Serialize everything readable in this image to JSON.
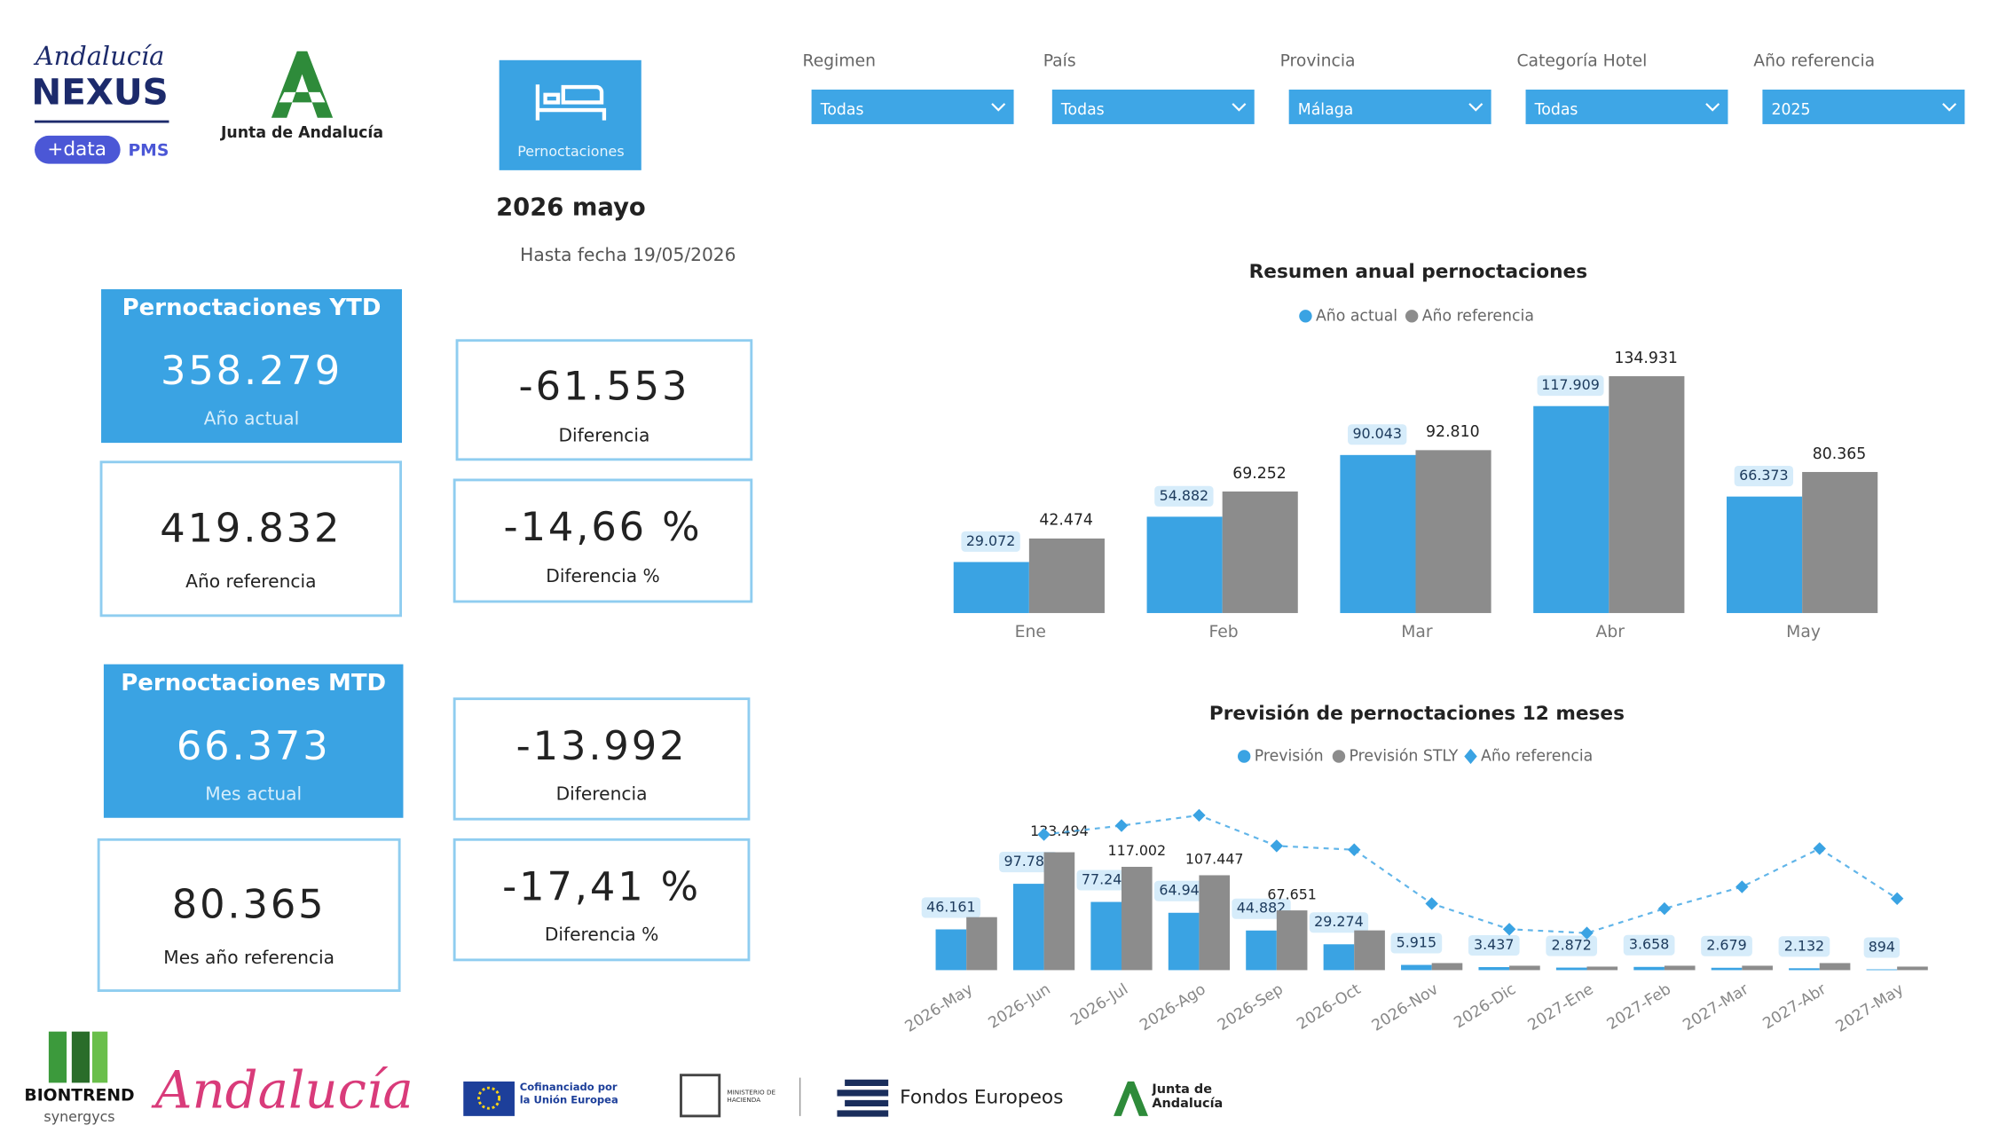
{
  "header": {
    "logo_title": "Andalucía",
    "logo_brand": "NEXUS",
    "logo_badge": "+data",
    "logo_tag": "PMS",
    "junta": "Junta de Andalucía",
    "button": "Pernoctaciones",
    "period": "2026 mayo",
    "date_note": "Hasta fecha 19/05/2026"
  },
  "filters": [
    {
      "label": "Regimen",
      "value": "Todas"
    },
    {
      "label": "País",
      "value": "Todas"
    },
    {
      "label": "Provincia",
      "value": "Málaga"
    },
    {
      "label": "Categoría Hotel",
      "value": "Todas"
    },
    {
      "label": "Año referencia",
      "value": "2025"
    }
  ],
  "kpis": {
    "ytd_current": {
      "title": "Pernoctaciones YTD",
      "value": "358.279",
      "caption": "Año actual"
    },
    "ytd_ref": {
      "value": "419.832",
      "caption": "Año referencia"
    },
    "ytd_diff": {
      "value": "-61.553",
      "caption": "Diferencia"
    },
    "ytd_pct": {
      "value": "-14,66 %",
      "caption": "Diferencia %"
    },
    "mtd_current": {
      "title": "Pernoctaciones MTD",
      "value": "66.373",
      "caption": "Mes actual"
    },
    "mtd_ref": {
      "value": "80.365",
      "caption": "Mes año referencia"
    },
    "mtd_diff": {
      "value": "-13.992",
      "caption": "Diferencia"
    },
    "mtd_pct": {
      "value": "-17,41 %",
      "caption": "Diferencia %"
    }
  },
  "footer": {
    "biontrend": "BIONTREND",
    "synergycs": "synergycs",
    "andalucia": "Andalucía",
    "eu": "Cofinanciado por la Unión Europea",
    "ministerio": "MINISTERIO DE HACIENDA",
    "fondos": "Fondos Europeos",
    "junta": "Junta de Andalucía"
  },
  "chart_data": [
    {
      "type": "bar",
      "title": "Resumen anual pernoctaciones",
      "legend": "top",
      "categories": [
        "Ene",
        "Feb",
        "Mar",
        "Abr",
        "May"
      ],
      "series": [
        {
          "name": "Año actual",
          "color": "#3aa3e3",
          "values": [
            29072,
            54882,
            90043,
            117909,
            66373
          ],
          "value_labels": [
            "29.072",
            "54.882",
            "90.043",
            "117.909",
            "66.373"
          ]
        },
        {
          "name": "Año referencia",
          "color": "#8c8c8c",
          "values": [
            42474,
            69252,
            92810,
            134931,
            80365
          ],
          "value_labels": [
            "42.474",
            "69.252",
            "92.810",
            "134.931",
            "80.365"
          ]
        }
      ],
      "ylim": [
        0,
        140000
      ]
    },
    {
      "type": "combo",
      "title": "Previsión de pernoctaciones 12 meses",
      "legend": "top",
      "categories": [
        "2026-May",
        "2026-Jun",
        "2026-Jul",
        "2026-Ago",
        "2026-Sep",
        "2026-Oct",
        "2026-Nov",
        "2026-Dic",
        "2027-Ene",
        "2027-Feb",
        "2027-Mar",
        "2027-Abr",
        "2027-May"
      ],
      "series": [
        {
          "name": "Previsión",
          "color": "#3aa3e3",
          "kind": "bar",
          "values": [
            46161,
            97788,
            77240,
            64947,
            44882,
            29274,
            5915,
            3437,
            2872,
            3658,
            2679,
            2132,
            894
          ],
          "value_labels": [
            "46.161",
            "97.788",
            "77.240",
            "64.947",
            "44.882",
            "29.274",
            "5.915",
            "3.437",
            "2.872",
            "3.658",
            "2.679",
            "2.132",
            "894"
          ]
        },
        {
          "name": "Previsión STLY",
          "color": "#8c8c8c",
          "kind": "bar",
          "values": [
            60000,
            133494,
            117002,
            107447,
            67651,
            45000,
            8000,
            5000,
            4000,
            5000,
            5000,
            8000,
            4000
          ],
          "value_labels": [
            null,
            "133.494",
            "117.002",
            "107.447",
            "67.651",
            null,
            null,
            null,
            null,
            null,
            null,
            null,
            null
          ]
        },
        {
          "name": "Año referencia",
          "color": "#3aa3e3",
          "kind": "line",
          "axis": "y2",
          "values": [
            null,
            461000,
            491000,
            526000,
            422000,
            409000,
            226000,
            139000,
            126000,
            209000,
            283000,
            413000,
            243000
          ]
        }
      ],
      "ylim": [
        0,
        200000
      ],
      "y2lim": [
        0,
        600000
      ]
    }
  ]
}
